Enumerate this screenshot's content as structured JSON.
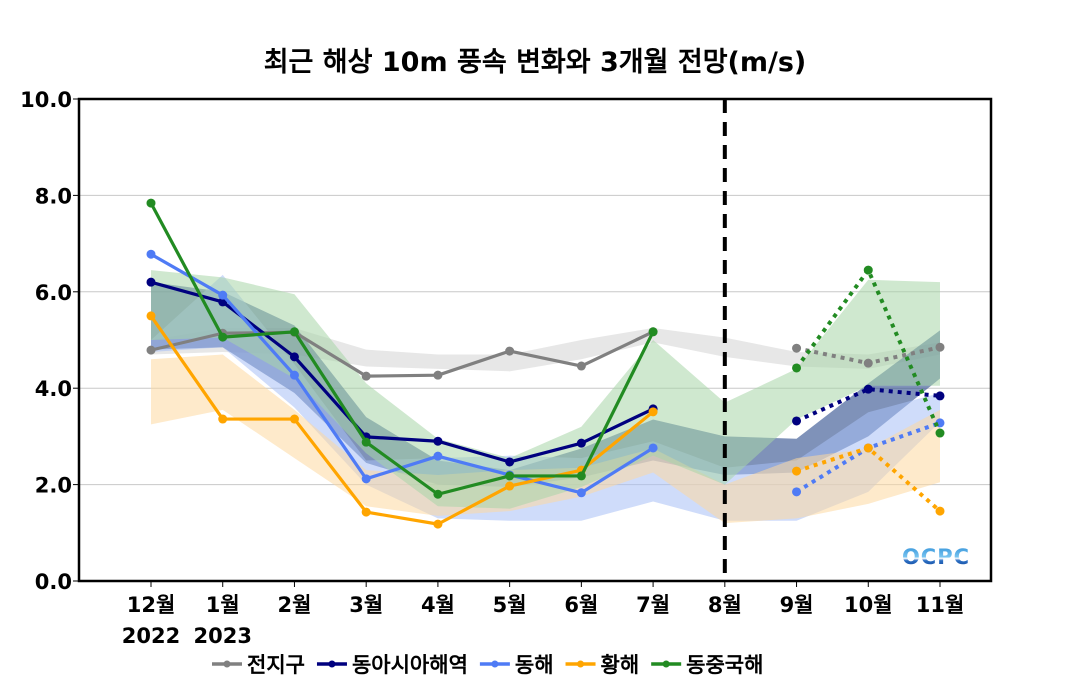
{
  "chart_data": {
    "type": "line",
    "title": "최근 해상 10m 풍속 변화와 3개월 전망(m/s)",
    "xlabel": "",
    "ylabel": "",
    "ylim": [
      0,
      10
    ],
    "yticks": [
      "0.0",
      "2.0",
      "4.0",
      "6.0",
      "8.0",
      "10.0"
    ],
    "grid": true,
    "categories": [
      "12월",
      "1월",
      "2월",
      "3월",
      "4월",
      "5월",
      "6월",
      "7월",
      "8월",
      "9월",
      "10월",
      "11월"
    ],
    "year_labels": [
      {
        "category": "12월",
        "text": "2022"
      },
      {
        "category": "1월",
        "text": "2023"
      }
    ],
    "divider": {
      "category": "8월",
      "style": "dashed",
      "meaning": "observed (left) vs outlook (right)"
    },
    "observed_categories": [
      "12월",
      "1월",
      "2월",
      "3월",
      "4월",
      "5월",
      "6월",
      "7월"
    ],
    "forecast_categories": [
      "9월",
      "10월",
      "11월"
    ],
    "legend_position": "bottom",
    "series": [
      {
        "name": "전지구",
        "color": "#808080",
        "band_color": "#d4d4d4",
        "observed": [
          4.79,
          5.14,
          5.16,
          4.25,
          4.27,
          4.77,
          4.46,
          5.17
        ],
        "forecast": [
          4.83,
          4.52,
          4.85
        ],
        "band_upper": [
          5.0,
          5.25,
          5.25,
          4.8,
          4.7,
          4.7,
          5.0,
          5.25,
          5.05,
          4.75,
          4.7,
          4.95
        ],
        "band_lower": [
          4.7,
          4.75,
          4.7,
          4.45,
          4.4,
          4.35,
          4.6,
          4.95,
          4.65,
          4.45,
          4.4,
          4.7
        ]
      },
      {
        "name": "동아시아해역",
        "color": "#00007f",
        "band_color": "#2a4a8a",
        "observed": [
          6.2,
          5.79,
          4.65,
          2.99,
          2.9,
          2.47,
          2.86,
          3.57
        ],
        "forecast": [
          3.32,
          3.98,
          3.84
        ],
        "band_upper": [
          6.2,
          6.0,
          5.3,
          3.4,
          2.5,
          2.3,
          2.75,
          3.35,
          3.0,
          2.95,
          4.1,
          5.2
        ],
        "band_lower": [
          4.8,
          4.85,
          3.9,
          2.45,
          2.0,
          1.95,
          2.15,
          2.5,
          2.2,
          2.25,
          3.0,
          4.2
        ]
      },
      {
        "name": "동해",
        "color": "#4f7bf5",
        "band_color": "#a8bff5",
        "observed": [
          6.78,
          5.93,
          4.27,
          2.12,
          2.59,
          2.2,
          1.83,
          2.76
        ],
        "forecast": [
          1.85,
          2.76,
          3.28
        ],
        "band_upper": [
          5.0,
          6.35,
          4.5,
          2.5,
          2.55,
          2.6,
          2.55,
          2.9,
          2.35,
          2.5,
          3.5,
          3.9
        ],
        "band_lower": [
          4.75,
          4.85,
          3.6,
          2.0,
          1.3,
          1.25,
          1.25,
          1.65,
          1.25,
          1.25,
          1.85,
          3.3
        ]
      },
      {
        "name": "황해",
        "color": "#ffa500",
        "band_color": "#fdd9a0",
        "observed": [
          5.5,
          3.36,
          3.36,
          1.43,
          1.18,
          1.97,
          2.3,
          3.51
        ],
        "forecast": [
          2.28,
          2.76,
          1.45
        ],
        "band_upper": [
          4.6,
          4.7,
          3.55,
          2.3,
          2.2,
          2.3,
          2.35,
          2.75,
          2.0,
          2.55,
          2.75,
          3.55
        ],
        "band_lower": [
          3.25,
          3.55,
          2.55,
          1.55,
          1.35,
          1.45,
          1.75,
          2.25,
          1.2,
          1.3,
          1.6,
          2.05
        ]
      },
      {
        "name": "동중국해",
        "color": "#228b22",
        "band_color": "#a8d5a8",
        "observed": [
          7.84,
          5.06,
          5.17,
          2.88,
          1.8,
          2.18,
          2.18,
          5.17
        ],
        "forecast": [
          4.42,
          6.45,
          3.07
        ],
        "band_upper": [
          6.45,
          6.3,
          5.95,
          4.1,
          2.95,
          2.55,
          3.2,
          5.0,
          3.7,
          4.4,
          6.25,
          6.2
        ],
        "band_lower": [
          5.0,
          5.05,
          4.2,
          2.65,
          1.55,
          1.5,
          1.95,
          2.6,
          2.0,
          3.35,
          4.05,
          4.05
        ]
      }
    ]
  },
  "logo": {
    "text": "OCPC"
  }
}
